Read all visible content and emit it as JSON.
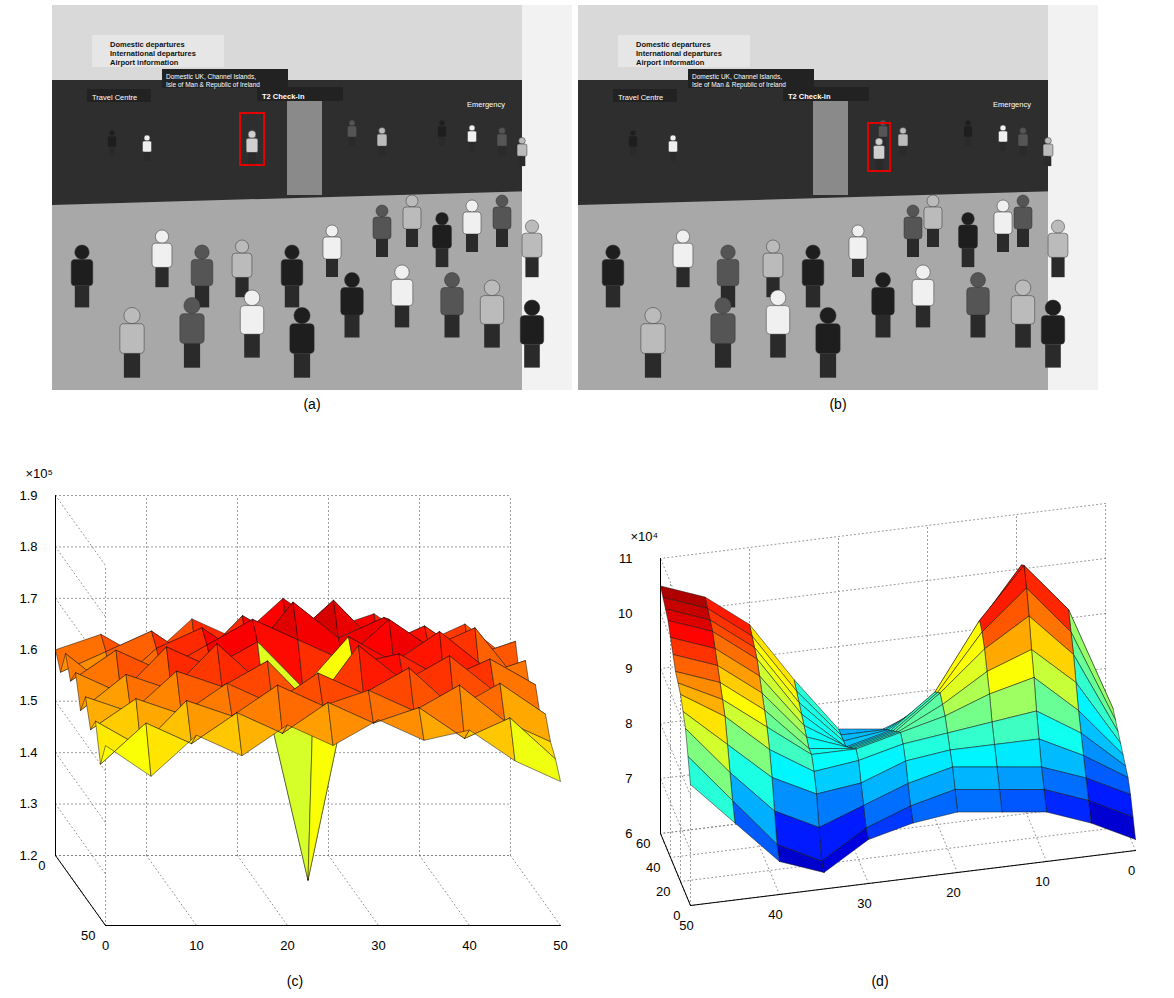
{
  "images": [
    {
      "caption": "(a)",
      "signs": [
        "Domestic departures",
        "International departures",
        "Airport information",
        "Domestic UK, Channel Islands,",
        "Isle of Man & Republic of Ireland",
        "Travel Centre",
        "T2 Check-in",
        "Emergency"
      ]
    },
    {
      "caption": "(b)",
      "signs": [
        "Domestic departures",
        "International departures",
        "Airport information",
        "Domestic UK, Channel Islands,",
        "Isle of Man & Republic of Ireland",
        "Travel Centre",
        "T2 Check-in",
        "Emergency"
      ]
    }
  ],
  "chart_data": [
    {
      "type": "surface",
      "caption": "(c)",
      "z_multiplier_label": "×10⁵",
      "grid": true,
      "x": [
        0,
        5,
        10,
        15,
        20,
        25,
        30,
        35,
        40,
        45,
        50
      ],
      "y": [
        0,
        5,
        10,
        15,
        20,
        25,
        30,
        35,
        40,
        45,
        50
      ],
      "z": [
        [
          1.6,
          1.63,
          1.58,
          1.66,
          1.62,
          1.7,
          1.64,
          1.67,
          1.61,
          1.65,
          1.58
        ],
        [
          1.57,
          1.61,
          1.65,
          1.59,
          1.68,
          1.63,
          1.71,
          1.62,
          1.66,
          1.6,
          1.63
        ],
        [
          1.62,
          1.55,
          1.63,
          1.67,
          1.61,
          1.72,
          1.65,
          1.69,
          1.63,
          1.67,
          1.56
        ],
        [
          1.58,
          1.64,
          1.6,
          1.65,
          1.7,
          1.66,
          1.62,
          1.7,
          1.64,
          1.59,
          1.62
        ],
        [
          1.61,
          1.57,
          1.66,
          1.62,
          1.67,
          1.58,
          1.68,
          1.63,
          1.69,
          1.62,
          1.57
        ],
        [
          1.55,
          1.62,
          1.59,
          1.68,
          1.6,
          1.22,
          1.64,
          1.66,
          1.61,
          1.65,
          1.6
        ],
        [
          1.59,
          1.56,
          1.64,
          1.61,
          1.66,
          1.57,
          1.69,
          1.62,
          1.67,
          1.6,
          1.55
        ],
        [
          1.54,
          1.6,
          1.57,
          1.63,
          1.59,
          1.65,
          1.61,
          1.66,
          1.58,
          1.63,
          1.57
        ],
        [
          1.57,
          1.52,
          1.61,
          1.58,
          1.64,
          1.6,
          1.63,
          1.59,
          1.64,
          1.57,
          1.53
        ],
        [
          1.5,
          1.58,
          1.54,
          1.6,
          1.56,
          1.62,
          1.58,
          1.61,
          1.55,
          1.59,
          1.51
        ],
        [
          1.55,
          1.49,
          1.57,
          1.53,
          1.59,
          1.55,
          1.6,
          1.56,
          1.58,
          1.52,
          1.48
        ]
      ],
      "xlim": [
        0,
        50
      ],
      "ylim": [
        0,
        50
      ],
      "zlim": [
        1.2,
        1.9
      ],
      "xticks": [
        0,
        10,
        20,
        30,
        40,
        50
      ],
      "yticks": [
        0,
        50
      ],
      "zticks": [
        1.2,
        1.3,
        1.4,
        1.5,
        1.6,
        1.7,
        1.8,
        1.9
      ]
    },
    {
      "type": "surface",
      "caption": "(d)",
      "z_multiplier_label": "×10⁴",
      "grid": true,
      "x": [
        0,
        5,
        10,
        15,
        20,
        25,
        30,
        35,
        40,
        45,
        50
      ],
      "y": [
        0,
        5,
        10,
        15,
        20,
        25,
        30,
        35,
        40,
        45,
        50,
        55,
        60
      ],
      "z": [
        [
          6.2,
          6.6,
          6.9,
          7.0,
          7.1,
          7.0,
          6.8,
          6.3,
          6.6,
          7.4,
          8.2
        ],
        [
          6.5,
          6.9,
          7.2,
          7.3,
          7.4,
          7.2,
          6.9,
          6.4,
          6.8,
          7.7,
          8.6
        ],
        [
          6.8,
          7.2,
          7.5,
          7.6,
          7.7,
          7.5,
          7.2,
          6.9,
          7.3,
          8.1,
          9.0
        ],
        [
          7.0,
          7.5,
          7.9,
          7.9,
          7.9,
          7.8,
          7.5,
          7.4,
          7.8,
          8.5,
          9.2
        ],
        [
          7.1,
          7.8,
          8.3,
          8.2,
          8.1,
          8.0,
          7.8,
          7.7,
          8.2,
          8.9,
          9.4
        ],
        [
          7.2,
          8.1,
          8.8,
          8.6,
          8.3,
          8.1,
          7.9,
          7.9,
          8.5,
          9.1,
          9.5
        ],
        [
          7.3,
          8.5,
          9.2,
          8.9,
          8.4,
          8.0,
          7.8,
          7.9,
          8.7,
          9.3,
          9.6
        ],
        [
          7.4,
          8.9,
          9.7,
          9.2,
          8.5,
          7.9,
          7.7,
          8.0,
          8.9,
          9.5,
          9.8
        ],
        [
          7.5,
          9.2,
          10.1,
          9.4,
          8.4,
          7.8,
          7.6,
          8.1,
          9.1,
          9.7,
          10.0
        ],
        [
          7.6,
          9.5,
          10.4,
          9.5,
          8.3,
          7.7,
          7.5,
          8.2,
          9.3,
          9.9,
          10.2
        ],
        [
          7.5,
          9.3,
          10.3,
          9.3,
          8.1,
          7.6,
          7.5,
          8.3,
          9.4,
          10.0,
          10.3
        ],
        [
          7.3,
          8.9,
          9.8,
          8.9,
          7.9,
          7.5,
          7.5,
          8.4,
          9.5,
          10.1,
          10.4
        ],
        [
          7.1,
          8.5,
          9.3,
          8.5,
          7.7,
          7.4,
          7.5,
          8.5,
          9.6,
          10.2,
          10.5
        ]
      ],
      "xlim": [
        0,
        50
      ],
      "ylim": [
        0,
        60
      ],
      "zlim": [
        6,
        11
      ],
      "xticks": [
        0,
        10,
        20,
        30,
        40,
        50
      ],
      "yticks": [
        0,
        20,
        40,
        60
      ],
      "zticks": [
        6,
        7,
        8,
        9,
        10,
        11
      ]
    }
  ]
}
